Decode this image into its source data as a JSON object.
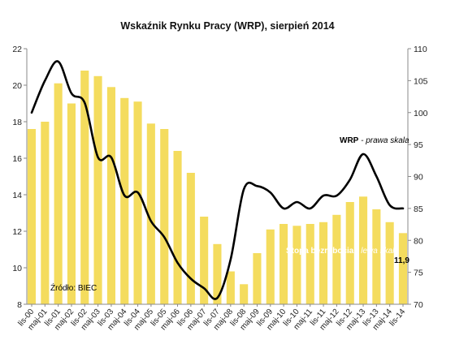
{
  "chart_data": {
    "type": "bar+line",
    "title": "Wskaźnik Rynku Pracy (WRP), sierpień 2014",
    "legend_placement": "inline annotations",
    "grid": false,
    "colors": {
      "bars": "#f4dc5e",
      "line": "#000000",
      "source_text": "#000000",
      "bar_label_text": "#ffffff",
      "last_value_text": "#000000"
    },
    "left_axis": {
      "ylim": [
        8,
        22
      ],
      "ticks": [
        "8",
        "10",
        "12",
        "14",
        "16",
        "18",
        "20",
        "22"
      ]
    },
    "right_axis": {
      "ylim": [
        70,
        110
      ],
      "ticks": [
        "70",
        "75",
        "80",
        "85",
        "90",
        "95",
        "100",
        "105",
        "110"
      ]
    },
    "x_tick_labels": [
      "lis-00",
      "maj-01",
      "lis-01",
      "maj-02",
      "lis-02",
      "maj-03",
      "lis-03",
      "maj-04",
      "lis-04",
      "maj-05",
      "lis-05",
      "maj-06",
      "lis-06",
      "maj-07",
      "lis-07",
      "maj-08",
      "lis-08",
      "maj-09",
      "lis-09",
      "maj-10",
      "lis-10",
      "maj-11",
      "lis-11",
      "maj-12",
      "lis-12",
      "maj-13",
      "lis-13",
      "maj-14",
      "lis-14"
    ],
    "series": [
      {
        "name": "Stopa bezrobocia - lewa skala",
        "axis": "left",
        "type": "bar",
        "x": [
          "lis-00",
          "maj-01",
          "lis-01",
          "maj-02",
          "lis-02",
          "maj-03",
          "lis-03",
          "maj-04",
          "lis-04",
          "maj-05",
          "lis-05",
          "maj-06",
          "lis-06",
          "maj-07",
          "lis-07",
          "maj-08",
          "lis-08",
          "maj-09",
          "lis-09",
          "maj-10",
          "lis-10",
          "maj-11",
          "lis-11",
          "maj-12",
          "lis-12",
          "maj-13",
          "lis-13",
          "maj-14",
          "sie-14"
        ],
        "values": [
          17.6,
          18.0,
          20.1,
          19.0,
          20.8,
          20.5,
          19.9,
          19.3,
          19.1,
          17.9,
          17.6,
          16.4,
          15.2,
          12.8,
          11.3,
          9.8,
          9.1,
          10.8,
          12.1,
          12.4,
          12.3,
          12.4,
          12.5,
          12.9,
          13.6,
          13.9,
          13.2,
          12.5,
          11.9
        ]
      },
      {
        "name": "WRP - prawa skala",
        "axis": "right",
        "type": "line",
        "x": [
          "lis-00",
          "maj-01",
          "lis-01",
          "maj-02",
          "lis-02",
          "maj-03",
          "lis-03",
          "maj-04",
          "lis-04",
          "maj-05",
          "lis-05",
          "maj-06",
          "lis-06",
          "maj-07",
          "lis-07",
          "maj-08",
          "lis-08",
          "maj-09",
          "lis-09",
          "maj-10",
          "lis-10",
          "maj-11",
          "lis-11",
          "maj-12",
          "lis-12",
          "maj-13",
          "lis-13",
          "maj-14",
          "sie-14"
        ],
        "values": [
          100.0,
          105.0,
          108.0,
          103.0,
          101.5,
          93.0,
          93.0,
          87.0,
          87.5,
          83.0,
          80.5,
          76.5,
          74.0,
          72.5,
          71.0,
          77.0,
          88.0,
          88.5,
          87.5,
          85.0,
          86.0,
          85.0,
          87.0,
          87.0,
          89.5,
          93.5,
          90.0,
          85.5,
          85.0
        ]
      }
    ],
    "annotations": {
      "line_label_bold": "WRP",
      "line_label_rest": " - prawa skala",
      "bar_label_bold": "Stopa bezrobocia",
      "bar_label_rest": " - lewa skala",
      "last_value": "11,9",
      "source": "Źródło: BIEC"
    }
  }
}
